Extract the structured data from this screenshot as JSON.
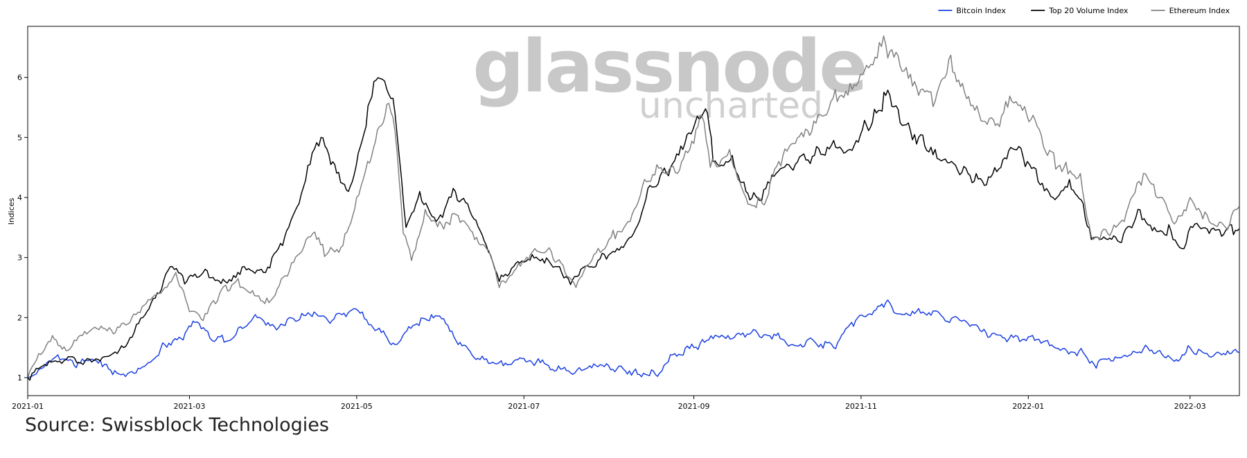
{
  "chart_data": {
    "type": "line",
    "title": "",
    "xlabel": "",
    "ylabel": "Indices",
    "x_range": [
      "2021-01-01",
      "2022-03-19"
    ],
    "ylim": [
      0.7,
      6.85
    ],
    "x_ticks": [
      "2021-01",
      "2021-03",
      "2021-05",
      "2021-07",
      "2021-09",
      "2021-11",
      "2022-01",
      "2022-03"
    ],
    "y_ticks": [
      1,
      2,
      3,
      4,
      5,
      6
    ],
    "legend_placement": "top-right",
    "grid": false,
    "series": [
      {
        "name": "Bitcoin Index",
        "color": "#1a3fe0",
        "points": [
          [
            "2021-01-01",
            1.0
          ],
          [
            "2021-01-08",
            1.25
          ],
          [
            "2021-01-12",
            1.38
          ],
          [
            "2021-01-18",
            1.2
          ],
          [
            "2021-01-23",
            1.28
          ],
          [
            "2021-01-29",
            1.22
          ],
          [
            "2021-02-01",
            1.05
          ],
          [
            "2021-02-08",
            1.1
          ],
          [
            "2021-02-14",
            1.25
          ],
          [
            "2021-02-20",
            1.55
          ],
          [
            "2021-02-26",
            1.65
          ],
          [
            "2021-03-03",
            1.92
          ],
          [
            "2021-03-10",
            1.6
          ],
          [
            "2021-03-18",
            1.72
          ],
          [
            "2021-03-25",
            2.05
          ],
          [
            "2021-04-01",
            1.85
          ],
          [
            "2021-04-08",
            1.98
          ],
          [
            "2021-04-14",
            2.05
          ],
          [
            "2021-04-22",
            1.95
          ],
          [
            "2021-04-30",
            2.15
          ],
          [
            "2021-05-10",
            1.75
          ],
          [
            "2021-05-15",
            1.55
          ],
          [
            "2021-05-20",
            1.85
          ],
          [
            "2021-05-26",
            1.98
          ],
          [
            "2021-06-01",
            1.98
          ],
          [
            "2021-06-07",
            1.55
          ],
          [
            "2021-06-15",
            1.3
          ],
          [
            "2021-06-22",
            1.25
          ],
          [
            "2021-07-01",
            1.32
          ],
          [
            "2021-07-10",
            1.2
          ],
          [
            "2021-07-18",
            1.08
          ],
          [
            "2021-07-22",
            1.12
          ],
          [
            "2021-07-28",
            1.18
          ],
          [
            "2021-08-04",
            1.15
          ],
          [
            "2021-08-10",
            1.1
          ],
          [
            "2021-08-18",
            1.05
          ],
          [
            "2021-08-25",
            1.4
          ],
          [
            "2021-09-01",
            1.5
          ],
          [
            "2021-09-08",
            1.65
          ],
          [
            "2021-09-15",
            1.65
          ],
          [
            "2021-09-22",
            1.75
          ],
          [
            "2021-10-01",
            1.7
          ],
          [
            "2021-10-07",
            1.55
          ],
          [
            "2021-10-15",
            1.6
          ],
          [
            "2021-10-22",
            1.5
          ],
          [
            "2021-10-30",
            1.95
          ],
          [
            "2021-11-05",
            2.05
          ],
          [
            "2021-11-10",
            2.25
          ],
          [
            "2021-11-16",
            2.05
          ],
          [
            "2021-11-22",
            2.15
          ],
          [
            "2021-12-01",
            2.0
          ],
          [
            "2021-12-10",
            1.9
          ],
          [
            "2021-12-18",
            1.68
          ],
          [
            "2021-12-25",
            1.65
          ],
          [
            "2022-01-01",
            1.68
          ],
          [
            "2022-01-08",
            1.62
          ],
          [
            "2022-01-15",
            1.45
          ],
          [
            "2022-01-21",
            1.42
          ],
          [
            "2022-01-25",
            1.22
          ],
          [
            "2022-02-01",
            1.28
          ],
          [
            "2022-02-06",
            1.35
          ],
          [
            "2022-02-12",
            1.48
          ],
          [
            "2022-02-18",
            1.45
          ],
          [
            "2022-02-24",
            1.3
          ],
          [
            "2022-03-01",
            1.5
          ],
          [
            "2022-03-08",
            1.35
          ],
          [
            "2022-03-14",
            1.38
          ],
          [
            "2022-03-19",
            1.42
          ]
        ]
      },
      {
        "name": "Top 20 Volume Index",
        "color": "#000000",
        "points": [
          [
            "2021-01-01",
            1.0
          ],
          [
            "2021-01-08",
            1.2
          ],
          [
            "2021-01-15",
            1.3
          ],
          [
            "2021-01-22",
            1.28
          ],
          [
            "2021-01-29",
            1.35
          ],
          [
            "2021-02-05",
            1.5
          ],
          [
            "2021-02-12",
            2.0
          ],
          [
            "2021-02-18",
            2.4
          ],
          [
            "2021-02-22",
            2.85
          ],
          [
            "2021-02-28",
            2.6
          ],
          [
            "2021-03-06",
            2.75
          ],
          [
            "2021-03-14",
            2.6
          ],
          [
            "2021-03-21",
            2.85
          ],
          [
            "2021-03-28",
            2.75
          ],
          [
            "2021-04-04",
            3.2
          ],
          [
            "2021-04-10",
            3.9
          ],
          [
            "2021-04-14",
            4.55
          ],
          [
            "2021-04-18",
            5.0
          ],
          [
            "2021-04-23",
            4.55
          ],
          [
            "2021-04-28",
            4.1
          ],
          [
            "2021-05-03",
            4.95
          ],
          [
            "2021-05-08",
            5.95
          ],
          [
            "2021-05-12",
            5.8
          ],
          [
            "2021-05-15",
            5.4
          ],
          [
            "2021-05-19",
            3.5
          ],
          [
            "2021-05-24",
            4.1
          ],
          [
            "2021-05-30",
            3.6
          ],
          [
            "2021-06-06",
            4.1
          ],
          [
            "2021-06-12",
            3.7
          ],
          [
            "2021-06-18",
            3.1
          ],
          [
            "2021-06-22",
            2.6
          ],
          [
            "2021-06-28",
            2.9
          ],
          [
            "2021-07-04",
            3.05
          ],
          [
            "2021-07-10",
            2.95
          ],
          [
            "2021-07-14",
            2.85
          ],
          [
            "2021-07-18",
            2.55
          ],
          [
            "2021-07-21",
            2.7
          ],
          [
            "2021-07-28",
            2.95
          ],
          [
            "2021-08-04",
            3.15
          ],
          [
            "2021-08-10",
            3.4
          ],
          [
            "2021-08-16",
            4.2
          ],
          [
            "2021-08-22",
            4.4
          ],
          [
            "2021-08-28",
            4.8
          ],
          [
            "2021-09-03",
            5.3
          ],
          [
            "2021-09-06",
            5.4
          ],
          [
            "2021-09-08",
            4.6
          ],
          [
            "2021-09-15",
            4.7
          ],
          [
            "2021-09-20",
            4.1
          ],
          [
            "2021-09-25",
            3.95
          ],
          [
            "2021-10-01",
            4.4
          ],
          [
            "2021-10-08",
            4.55
          ],
          [
            "2021-10-15",
            4.7
          ],
          [
            "2021-10-22",
            4.95
          ],
          [
            "2021-10-28",
            4.8
          ],
          [
            "2021-11-03",
            5.2
          ],
          [
            "2021-11-08",
            5.45
          ],
          [
            "2021-11-10",
            5.7
          ],
          [
            "2021-11-16",
            5.2
          ],
          [
            "2021-11-22",
            5.0
          ],
          [
            "2021-11-28",
            4.8
          ],
          [
            "2021-12-04",
            4.6
          ],
          [
            "2021-12-10",
            4.4
          ],
          [
            "2021-12-16",
            4.2
          ],
          [
            "2021-12-22",
            4.5
          ],
          [
            "2021-12-27",
            4.8
          ],
          [
            "2022-01-03",
            4.5
          ],
          [
            "2022-01-10",
            4.0
          ],
          [
            "2022-01-16",
            4.3
          ],
          [
            "2022-01-21",
            3.9
          ],
          [
            "2022-01-24",
            3.3
          ],
          [
            "2022-01-30",
            3.3
          ],
          [
            "2022-02-04",
            3.25
          ],
          [
            "2022-02-10",
            3.8
          ],
          [
            "2022-02-16",
            3.5
          ],
          [
            "2022-02-22",
            3.45
          ],
          [
            "2022-02-26",
            3.15
          ],
          [
            "2022-03-02",
            3.5
          ],
          [
            "2022-03-08",
            3.4
          ],
          [
            "2022-03-14",
            3.45
          ],
          [
            "2022-03-19",
            3.48
          ]
        ]
      },
      {
        "name": "Ethereum Index",
        "color": "#808080",
        "points": [
          [
            "2021-01-01",
            1.0
          ],
          [
            "2021-01-05",
            1.4
          ],
          [
            "2021-01-10",
            1.7
          ],
          [
            "2021-01-15",
            1.45
          ],
          [
            "2021-01-21",
            1.7
          ],
          [
            "2021-01-27",
            1.8
          ],
          [
            "2021-02-02",
            1.75
          ],
          [
            "2021-02-08",
            2.0
          ],
          [
            "2021-02-14",
            2.3
          ],
          [
            "2021-02-20",
            2.5
          ],
          [
            "2021-02-24",
            2.75
          ],
          [
            "2021-03-01",
            2.1
          ],
          [
            "2021-03-06",
            1.95
          ],
          [
            "2021-03-12",
            2.4
          ],
          [
            "2021-03-18",
            2.6
          ],
          [
            "2021-03-24",
            2.45
          ],
          [
            "2021-03-30",
            2.25
          ],
          [
            "2021-04-05",
            2.7
          ],
          [
            "2021-04-11",
            3.1
          ],
          [
            "2021-04-15",
            3.4
          ],
          [
            "2021-04-20",
            3.05
          ],
          [
            "2021-04-26",
            3.2
          ],
          [
            "2021-05-01",
            4.0
          ],
          [
            "2021-05-05",
            4.6
          ],
          [
            "2021-05-10",
            5.2
          ],
          [
            "2021-05-12",
            5.55
          ],
          [
            "2021-05-15",
            5.1
          ],
          [
            "2021-05-18",
            3.4
          ],
          [
            "2021-05-21",
            2.95
          ],
          [
            "2021-05-26",
            3.8
          ],
          [
            "2021-06-01",
            3.55
          ],
          [
            "2021-06-07",
            3.7
          ],
          [
            "2021-06-13",
            3.3
          ],
          [
            "2021-06-19",
            3.0
          ],
          [
            "2021-06-22",
            2.5
          ],
          [
            "2021-06-29",
            2.9
          ],
          [
            "2021-07-05",
            3.15
          ],
          [
            "2021-07-11",
            3.1
          ],
          [
            "2021-07-16",
            2.75
          ],
          [
            "2021-07-20",
            2.5
          ],
          [
            "2021-07-25",
            2.9
          ],
          [
            "2021-08-01",
            3.3
          ],
          [
            "2021-08-08",
            3.6
          ],
          [
            "2021-08-14",
            4.3
          ],
          [
            "2021-08-20",
            4.5
          ],
          [
            "2021-08-26",
            4.4
          ],
          [
            "2021-09-01",
            4.9
          ],
          [
            "2021-09-04",
            5.35
          ],
          [
            "2021-09-07",
            4.5
          ],
          [
            "2021-09-14",
            4.8
          ],
          [
            "2021-09-20",
            4.0
          ],
          [
            "2021-09-26",
            3.9
          ],
          [
            "2021-10-02",
            4.6
          ],
          [
            "2021-10-08",
            4.9
          ],
          [
            "2021-10-14",
            5.1
          ],
          [
            "2021-10-21",
            5.6
          ],
          [
            "2021-10-28",
            5.9
          ],
          [
            "2021-11-03",
            6.2
          ],
          [
            "2021-11-10",
            6.55
          ],
          [
            "2021-11-16",
            6.1
          ],
          [
            "2021-11-22",
            5.7
          ],
          [
            "2021-11-28",
            5.6
          ],
          [
            "2021-12-03",
            6.3
          ],
          [
            "2021-12-08",
            5.9
          ],
          [
            "2021-12-14",
            5.4
          ],
          [
            "2021-12-20",
            5.2
          ],
          [
            "2021-12-26",
            5.6
          ],
          [
            "2022-01-02",
            5.3
          ],
          [
            "2022-01-08",
            4.7
          ],
          [
            "2022-01-14",
            4.5
          ],
          [
            "2022-01-20",
            4.4
          ],
          [
            "2022-01-24",
            3.35
          ],
          [
            "2022-01-30",
            3.4
          ],
          [
            "2022-02-05",
            3.6
          ],
          [
            "2022-02-12",
            4.4
          ],
          [
            "2022-02-18",
            4.0
          ],
          [
            "2022-02-24",
            3.6
          ],
          [
            "2022-03-01",
            4.0
          ],
          [
            "2022-03-08",
            3.6
          ],
          [
            "2022-03-14",
            3.5
          ],
          [
            "2022-03-19",
            3.85
          ]
        ]
      }
    ]
  },
  "watermark": {
    "main": "glassnode",
    "sub": "uncharted"
  },
  "source": "Source: Swissblock Technologies"
}
